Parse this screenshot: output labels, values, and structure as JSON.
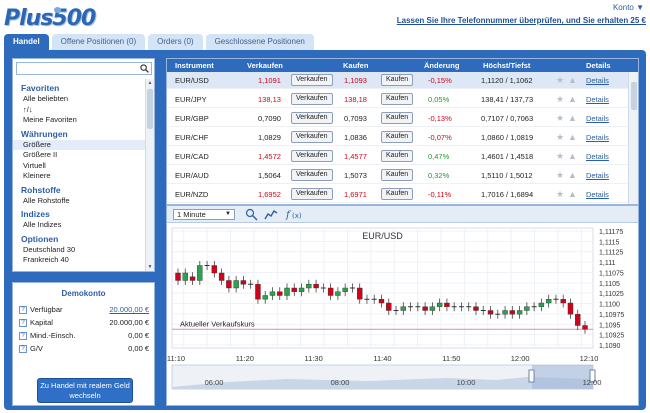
{
  "header": {
    "logo": "Plus500",
    "konto": "Konto ▼",
    "promo": "Lassen Sie Ihre Telefonnummer überprüfen, und Sie erhalten 25 €"
  },
  "tabs": [
    "Handel",
    "Offene Positionen (0)",
    "Orders (0)",
    "Geschlossene Positionen"
  ],
  "sidebar": {
    "search_value": "",
    "sections": [
      {
        "title": "Favoriten",
        "items": [
          "Alle beliebten",
          "↑/↓",
          "Meine Favoriten"
        ]
      },
      {
        "title": "Währungen",
        "items": [
          "Größere",
          "Größere II",
          "Virtuell",
          "Kleinere"
        ]
      },
      {
        "title": "Rohstoffe",
        "items": [
          "Alle Rohstoffe"
        ]
      },
      {
        "title": "Indizes",
        "items": [
          "Alle Indizes"
        ]
      },
      {
        "title": "Optionen",
        "items": [
          "Deutschland 30",
          "Frankreich 40"
        ]
      }
    ]
  },
  "demo": {
    "title": "Demokonto",
    "rows": [
      {
        "label": "Verfügbar",
        "value": "20.000,00 €"
      },
      {
        "label": "Kapital",
        "value": "20.000,00 €"
      },
      {
        "label": "Mind.-Einsch.",
        "value": "0,00 €"
      },
      {
        "label": "G/V",
        "value": "0,00 €"
      }
    ],
    "button": "Zu Handel mit realem Geld wechseln"
  },
  "table": {
    "headers": [
      "Instrument",
      "Verkaufen",
      "Kaufen",
      "Änderung",
      "Höchst/Tiefst",
      "Details"
    ],
    "sell_label": "Verkaufen",
    "buy_label": "Kaufen",
    "details_label": "Details",
    "rows": [
      {
        "instrument": "EUR/USD",
        "sell": "1,1091",
        "buy": "1,1093",
        "change": "-0,15%",
        "highlow": "1,1120 / 1,1062",
        "color": "red"
      },
      {
        "instrument": "EUR/JPY",
        "sell": "138,13",
        "buy": "138,18",
        "change": "0,05%",
        "highlow": "138,41 / 137,73",
        "color": "red"
      },
      {
        "instrument": "EUR/GBP",
        "sell": "0,7090",
        "buy": "0,7093",
        "change": "-0,13%",
        "highlow": "0,7107 / 0,7063",
        "color": "black"
      },
      {
        "instrument": "EUR/CHF",
        "sell": "1,0829",
        "buy": "1,0836",
        "change": "-0,07%",
        "highlow": "1,0860 / 1,0819",
        "color": "black"
      },
      {
        "instrument": "EUR/CAD",
        "sell": "1,4572",
        "buy": "1,4577",
        "change": "0,47%",
        "highlow": "1,4601 / 1,4518",
        "color": "red"
      },
      {
        "instrument": "EUR/AUD",
        "sell": "1,5064",
        "buy": "1,5073",
        "change": "0,32%",
        "highlow": "1,5110 / 1,5012",
        "color": "black"
      },
      {
        "instrument": "EUR/NZD",
        "sell": "1,6952",
        "buy": "1,6971",
        "change": "-0,11%",
        "highlow": "1,7016 / 1,6894",
        "color": "red"
      }
    ]
  },
  "chart_toolbar": {
    "interval": "1 Minute"
  },
  "chart_data": {
    "type": "candlestick",
    "title": "EUR/USD",
    "annotation": "Aktueller Verkaufskurs",
    "ylim": [
      1.1086,
      1.1118
    ],
    "yticks": [
      "1,11175",
      "1,1115",
      "1,11125",
      "1,111",
      "1,11075",
      "1,1105",
      "1,11025",
      "1,1100",
      "1,10975",
      "1,1095",
      "1,10925",
      "1,1090"
    ],
    "xticks": [
      "11:10",
      "11:20",
      "11:30",
      "11:40",
      "11:50",
      "12:00",
      "12:10"
    ],
    "nav_ticks": [
      "06:00",
      "08:00",
      "10:00",
      "12:00"
    ],
    "current_price": 1.1091,
    "candles": [
      [
        1.1106,
        1.1104
      ],
      [
        1.1104,
        1.1106
      ],
      [
        1.1105,
        1.1104
      ],
      [
        1.1104,
        1.1108
      ],
      [
        1.1108,
        1.1108
      ],
      [
        1.1108,
        1.1106
      ],
      [
        1.1106,
        1.1104
      ],
      [
        1.1104,
        1.1102
      ],
      [
        1.1102,
        1.1104
      ],
      [
        1.1104,
        1.1103
      ],
      [
        1.1103,
        1.1103
      ],
      [
        1.1103,
        1.1099
      ],
      [
        1.1099,
        1.11
      ],
      [
        1.11,
        1.1101
      ],
      [
        1.1101,
        1.11
      ],
      [
        1.11,
        1.1102
      ],
      [
        1.1102,
        1.1101
      ],
      [
        1.1101,
        1.1102
      ],
      [
        1.1102,
        1.1103
      ],
      [
        1.1103,
        1.1102
      ],
      [
        1.1102,
        1.1102
      ],
      [
        1.1102,
        1.11
      ],
      [
        1.11,
        1.1101
      ],
      [
        1.1101,
        1.1102
      ],
      [
        1.1102,
        1.1102
      ],
      [
        1.1102,
        1.1099
      ],
      [
        1.1099,
        1.1099
      ],
      [
        1.1099,
        1.1099
      ],
      [
        1.1099,
        1.1098
      ],
      [
        1.1098,
        1.1096
      ],
      [
        1.1096,
        1.1096
      ],
      [
        1.1096,
        1.1097
      ],
      [
        1.1097,
        1.1097
      ],
      [
        1.1097,
        1.1097
      ],
      [
        1.1097,
        1.1096
      ],
      [
        1.1096,
        1.1097
      ],
      [
        1.1097,
        1.1098
      ],
      [
        1.1098,
        1.1097
      ],
      [
        1.1097,
        1.1097
      ],
      [
        1.1097,
        1.1097
      ],
      [
        1.1097,
        1.1097
      ],
      [
        1.1097,
        1.1096
      ],
      [
        1.1096,
        1.1096
      ],
      [
        1.1096,
        1.1095
      ],
      [
        1.1095,
        1.1095
      ],
      [
        1.1095,
        1.1096
      ],
      [
        1.1096,
        1.1095
      ],
      [
        1.1095,
        1.1096
      ],
      [
        1.1096,
        1.1097
      ],
      [
        1.1097,
        1.1097
      ],
      [
        1.1097,
        1.1098
      ],
      [
        1.1098,
        1.1099
      ],
      [
        1.1099,
        1.1099
      ],
      [
        1.1099,
        1.1098
      ],
      [
        1.1098,
        1.1095
      ],
      [
        1.1095,
        1.1092
      ],
      [
        1.1092,
        1.1091
      ]
    ]
  }
}
